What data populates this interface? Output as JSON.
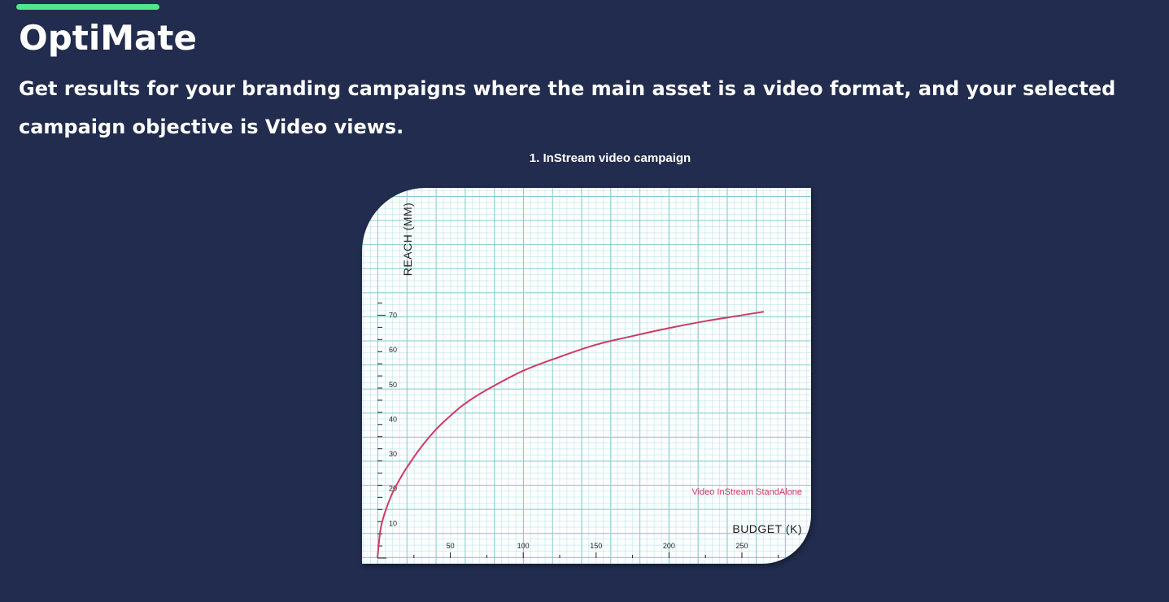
{
  "app": {
    "title": "OptiMate",
    "accent_color": "#4ee88e",
    "background_color": "#212c4e"
  },
  "intro": {
    "subtitle": "Get results for your branding campaigns where the main asset is a video format, and your selected campaign objective is Video views."
  },
  "chart_data": {
    "type": "line",
    "title": "1. InStream video campaign",
    "xlabel": "BUDGET (K)",
    "ylabel": "REACH (MM)",
    "x_ticks": [
      50,
      100,
      150,
      200,
      250
    ],
    "y_ticks": [
      10,
      20,
      30,
      40,
      50,
      60,
      70
    ],
    "xlim": [
      0,
      300
    ],
    "ylim": [
      0,
      75
    ],
    "grid": true,
    "series": [
      {
        "name": "Video InStream StandAlone",
        "color": "#d03a62",
        "x": [
          0,
          2,
          5,
          10,
          15,
          20,
          30,
          40,
          50,
          60,
          75,
          100,
          125,
          150,
          175,
          200,
          225,
          250,
          265
        ],
        "y": [
          0,
          8,
          13,
          18.5,
          22.5,
          26,
          32,
          37,
          41,
          44.5,
          48.5,
          54,
          58,
          61.5,
          64,
          66.3,
          68.3,
          70,
          71
        ]
      }
    ]
  }
}
